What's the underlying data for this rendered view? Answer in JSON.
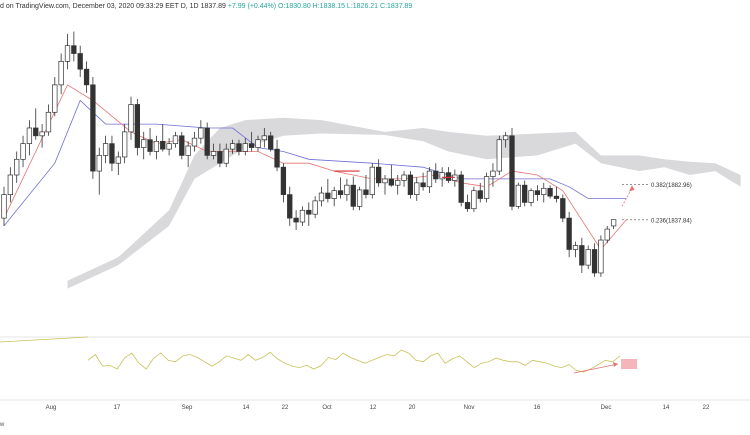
{
  "header": {
    "prefix": "d on TradingView.com, December 03, 2020 09:33:29 EET",
    "symbol": "D, 1D",
    "last": "1837.89",
    "change": "+7.99 (+0.44%)",
    "ohlc": "O:1830.80 H:1838.15 L:1826.21 C:1837.89"
  },
  "footer": {
    "text": "w"
  },
  "colors": {
    "bull": "#ffffff",
    "bear": "#333333",
    "candle_stroke": "#333333",
    "cloud": "#d9d9dc",
    "conversion_line": "#e57373",
    "base_line": "#6f6fd6",
    "oscillator": "#c8c25a",
    "arrow": "#e57373",
    "highlight": "#f4b6bb",
    "grid": "#cccccc"
  },
  "chart_data": {
    "type": "candlestick",
    "x_axis_labels": [
      "Aug",
      "17",
      "Sep",
      "14",
      "22",
      "Oct",
      "12",
      "20",
      "Nov",
      "16",
      "Dec",
      "14",
      "22"
    ],
    "ylim": [
      1710,
      2080
    ],
    "fib_levels": [
      {
        "label": "0.382(1882.96)",
        "value": 1882.96
      },
      {
        "label": "0.236(1837.84)",
        "value": 1837.84
      }
    ],
    "candles": [
      [
        1840,
        1880,
        1830,
        1870
      ],
      [
        1870,
        1905,
        1860,
        1895
      ],
      [
        1895,
        1925,
        1885,
        1915
      ],
      [
        1915,
        1945,
        1905,
        1935
      ],
      [
        1935,
        1965,
        1920,
        1955
      ],
      [
        1955,
        1980,
        1940,
        1945
      ],
      [
        1945,
        1960,
        1930,
        1950
      ],
      [
        1950,
        1985,
        1945,
        1975
      ],
      [
        1975,
        2020,
        1970,
        2010
      ],
      [
        2010,
        2050,
        1998,
        2040
      ],
      [
        2040,
        2075,
        2030,
        2060
      ],
      [
        2060,
        2078,
        2040,
        2050
      ],
      [
        2050,
        2060,
        2020,
        2030
      ],
      [
        2030,
        2040,
        2000,
        2010
      ],
      [
        2010,
        2020,
        1890,
        1900
      ],
      [
        1900,
        1930,
        1870,
        1920
      ],
      [
        1920,
        1945,
        1910,
        1935
      ],
      [
        1935,
        1945,
        1900,
        1910
      ],
      [
        1910,
        1925,
        1895,
        1918
      ],
      [
        1918,
        1960,
        1910,
        1950
      ],
      [
        1950,
        1995,
        1940,
        1985
      ],
      [
        1985,
        1992,
        1920,
        1930
      ],
      [
        1930,
        1950,
        1915,
        1940
      ],
      [
        1940,
        1955,
        1920,
        1925
      ],
      [
        1925,
        1945,
        1915,
        1938
      ],
      [
        1938,
        1960,
        1925,
        1928
      ],
      [
        1928,
        1942,
        1920,
        1935
      ],
      [
        1935,
        1950,
        1930,
        1945
      ],
      [
        1945,
        1950,
        1915,
        1920
      ],
      [
        1920,
        1938,
        1905,
        1932
      ],
      [
        1932,
        1950,
        1925,
        1942
      ],
      [
        1942,
        1965,
        1935,
        1955
      ],
      [
        1955,
        1962,
        1915,
        1920
      ],
      [
        1920,
        1935,
        1915,
        1925
      ],
      [
        1925,
        1935,
        1905,
        1910
      ],
      [
        1910,
        1935,
        1905,
        1928
      ],
      [
        1928,
        1940,
        1922,
        1935
      ],
      [
        1935,
        1940,
        1920,
        1925
      ],
      [
        1925,
        1942,
        1920,
        1935
      ],
      [
        1935,
        1950,
        1925,
        1930
      ],
      [
        1930,
        1945,
        1925,
        1940
      ],
      [
        1940,
        1955,
        1930,
        1945
      ],
      [
        1945,
        1950,
        1925,
        1928
      ],
      [
        1928,
        1940,
        1900,
        1905
      ],
      [
        1905,
        1910,
        1860,
        1870
      ],
      [
        1870,
        1880,
        1830,
        1840
      ],
      [
        1840,
        1850,
        1825,
        1835
      ],
      [
        1835,
        1855,
        1830,
        1850
      ],
      [
        1850,
        1860,
        1830,
        1845
      ],
      [
        1845,
        1868,
        1840,
        1862
      ],
      [
        1862,
        1880,
        1855,
        1872
      ],
      [
        1872,
        1890,
        1860,
        1865
      ],
      [
        1865,
        1880,
        1855,
        1875
      ],
      [
        1875,
        1892,
        1865,
        1870
      ],
      [
        1870,
        1890,
        1862,
        1882
      ],
      [
        1882,
        1893,
        1850,
        1855
      ],
      [
        1855,
        1880,
        1850,
        1876
      ],
      [
        1876,
        1895,
        1865,
        1870
      ],
      [
        1870,
        1910,
        1865,
        1905
      ],
      [
        1905,
        1915,
        1880,
        1885
      ],
      [
        1885,
        1895,
        1870,
        1890
      ],
      [
        1890,
        1908,
        1880,
        1882
      ],
      [
        1882,
        1895,
        1870,
        1888
      ],
      [
        1888,
        1900,
        1880,
        1895
      ],
      [
        1895,
        1900,
        1865,
        1870
      ],
      [
        1870,
        1892,
        1862,
        1885
      ],
      [
        1885,
        1898,
        1875,
        1880
      ],
      [
        1880,
        1905,
        1872,
        1900
      ],
      [
        1900,
        1910,
        1885,
        1890
      ],
      [
        1890,
        1905,
        1880,
        1898
      ],
      [
        1898,
        1905,
        1885,
        1888
      ],
      [
        1888,
        1902,
        1880,
        1895
      ],
      [
        1895,
        1900,
        1855,
        1860
      ],
      [
        1860,
        1870,
        1848,
        1852
      ],
      [
        1852,
        1880,
        1848,
        1875
      ],
      [
        1875,
        1885,
        1860,
        1865
      ],
      [
        1865,
        1898,
        1860,
        1893
      ],
      [
        1893,
        1910,
        1880,
        1900
      ],
      [
        1900,
        1945,
        1895,
        1940
      ],
      [
        1940,
        1950,
        1930,
        1945
      ],
      [
        1945,
        1955,
        1850,
        1855
      ],
      [
        1855,
        1885,
        1852,
        1882
      ],
      [
        1882,
        1888,
        1855,
        1860
      ],
      [
        1860,
        1878,
        1855,
        1875
      ],
      [
        1875,
        1882,
        1862,
        1870
      ],
      [
        1870,
        1885,
        1860,
        1878
      ],
      [
        1878,
        1882,
        1865,
        1868
      ],
      [
        1868,
        1880,
        1860,
        1865
      ],
      [
        1865,
        1870,
        1835,
        1840
      ],
      [
        1840,
        1848,
        1790,
        1800
      ],
      [
        1800,
        1810,
        1790,
        1805
      ],
      [
        1805,
        1815,
        1770,
        1780
      ],
      [
        1780,
        1805,
        1775,
        1800
      ],
      [
        1800,
        1808,
        1765,
        1770
      ],
      [
        1770,
        1818,
        1765,
        1812
      ],
      [
        1812,
        1830,
        1808,
        1826
      ],
      [
        1830,
        1838,
        1826,
        1838
      ]
    ],
    "conversion_line": [
      [
        0,
        1840
      ],
      [
        10,
        2010
      ],
      [
        14,
        1990
      ],
      [
        20,
        1950
      ],
      [
        24,
        1935
      ],
      [
        28,
        1940
      ],
      [
        32,
        1925
      ],
      [
        40,
        1925
      ],
      [
        44,
        1910
      ],
      [
        48,
        1910
      ],
      [
        52,
        1900
      ],
      [
        58,
        1890
      ],
      [
        63,
        1890
      ],
      [
        68,
        1895
      ],
      [
        72,
        1885
      ],
      [
        76,
        1880
      ],
      [
        80,
        1900
      ],
      [
        84,
        1895
      ],
      [
        88,
        1875
      ],
      [
        90,
        1850
      ],
      [
        94,
        1800
      ],
      [
        98,
        1838
      ]
    ],
    "base_line": [
      [
        0,
        1830
      ],
      [
        8,
        1910
      ],
      [
        12,
        1990
      ],
      [
        16,
        1960
      ],
      [
        24,
        1960
      ],
      [
        32,
        1955
      ],
      [
        36,
        1955
      ],
      [
        40,
        1930
      ],
      [
        44,
        1925
      ],
      [
        48,
        1915
      ],
      [
        58,
        1910
      ],
      [
        66,
        1905
      ],
      [
        72,
        1890
      ],
      [
        80,
        1890
      ],
      [
        86,
        1890
      ],
      [
        89,
        1880
      ],
      [
        92,
        1865
      ],
      [
        98,
        1865
      ]
    ],
    "cloud_a": [
      [
        10,
        1750
      ],
      [
        18,
        1780
      ],
      [
        26,
        1830
      ],
      [
        30,
        1890
      ],
      [
        34,
        1910
      ],
      [
        38,
        1930
      ],
      [
        44,
        1945
      ],
      [
        50,
        1948
      ],
      [
        60,
        1946
      ],
      [
        66,
        1938
      ],
      [
        70,
        1925
      ],
      [
        76,
        1915
      ],
      [
        84,
        1920
      ],
      [
        90,
        1935
      ],
      [
        94,
        1910
      ],
      [
        100,
        1900
      ],
      [
        104,
        1905
      ],
      [
        108,
        1895
      ],
      [
        112,
        1900
      ],
      [
        116,
        1880
      ]
    ],
    "cloud_b": [
      [
        10,
        1760
      ],
      [
        18,
        1790
      ],
      [
        26,
        1850
      ],
      [
        30,
        1920
      ],
      [
        34,
        1955
      ],
      [
        38,
        1965
      ],
      [
        44,
        1968
      ],
      [
        50,
        1965
      ],
      [
        60,
        1950
      ],
      [
        66,
        1955
      ],
      [
        70,
        1950
      ],
      [
        76,
        1945
      ],
      [
        84,
        1948
      ],
      [
        90,
        1950
      ],
      [
        94,
        1920
      ],
      [
        100,
        1920
      ],
      [
        104,
        1915
      ],
      [
        108,
        1912
      ],
      [
        112,
        1910
      ],
      [
        116,
        1895
      ]
    ],
    "oscillator": [
      52,
      60,
      44,
      45,
      40,
      55,
      62,
      48,
      40,
      55,
      62,
      52,
      50,
      58,
      60,
      56,
      50,
      44,
      50,
      58,
      55,
      52,
      60,
      52,
      56,
      63,
      54,
      48,
      44,
      42,
      45,
      40,
      45,
      56,
      53,
      62,
      56,
      52,
      48,
      52,
      56,
      60,
      58,
      66,
      62,
      52,
      50,
      58,
      62,
      48,
      54,
      58,
      50,
      42,
      48,
      50,
      55,
      52,
      50,
      50,
      45,
      52,
      50,
      48,
      44,
      42,
      46,
      38,
      36,
      40,
      46,
      52,
      50,
      58
    ]
  }
}
